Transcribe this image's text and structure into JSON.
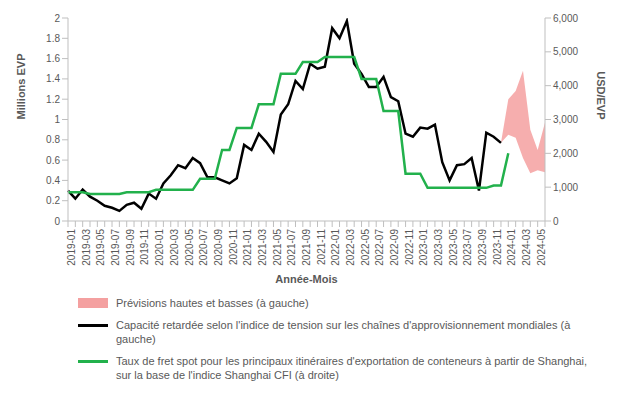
{
  "chart_data": {
    "type": "line",
    "x_label": "Année-Mois",
    "y_label": "Millions EVP",
    "y2_label": "USD/EVP",
    "categories": [
      "2019-01",
      null,
      "2019-03",
      null,
      "2019-05",
      null,
      "2019-07",
      null,
      "2019-09",
      null,
      "2019-11",
      null,
      "2020-01",
      null,
      "2020-03",
      null,
      "2020-05",
      null,
      "2020-07",
      null,
      "2020-09",
      null,
      "2020-11",
      null,
      "2021-01",
      null,
      "2021-03",
      null,
      "2021-05",
      null,
      "2021-07",
      null,
      "2021-09",
      null,
      "2021-11",
      null,
      "2022-01",
      null,
      "2022-03",
      null,
      "2022-05",
      null,
      "2022-07",
      null,
      "2022-09",
      null,
      "2022-11",
      null,
      "2023-01",
      null,
      "2023-03",
      null,
      "2023-05",
      null,
      "2023-07",
      null,
      "2023-09",
      null,
      "2023-11",
      null,
      "2024-01",
      null,
      "2024-03",
      null,
      "2024-05",
      null
    ],
    "ylim": [
      0,
      2
    ],
    "yticks": [
      0,
      0.2,
      0.4,
      0.6,
      0.8,
      1,
      1.2,
      1.4,
      1.6,
      1.8,
      2
    ],
    "y2lim": [
      0,
      6000
    ],
    "y2ticks": [
      0,
      {
        "value": 1000,
        "label": "1,000"
      },
      {
        "value": 2000,
        "label": "2,000"
      },
      {
        "value": 3000,
        "label": "3,000"
      },
      {
        "value": 4000,
        "label": "4,000"
      },
      {
        "value": 5000,
        "label": "5,000"
      },
      {
        "value": 6000,
        "label": "6,000"
      }
    ],
    "grid": false,
    "legend": "bottom",
    "series": [
      {
        "name": "Prévisions hautes et basses (à gauche)",
        "type": "area",
        "color": "#f4a0a0",
        "low": [
          null,
          null,
          null,
          null,
          null,
          null,
          null,
          null,
          null,
          null,
          null,
          null,
          null,
          null,
          null,
          null,
          null,
          null,
          null,
          null,
          null,
          null,
          null,
          null,
          null,
          null,
          null,
          null,
          null,
          null,
          null,
          null,
          null,
          null,
          null,
          null,
          null,
          null,
          null,
          null,
          null,
          null,
          null,
          null,
          null,
          null,
          null,
          null,
          null,
          null,
          null,
          null,
          null,
          null,
          null,
          null,
          null,
          null,
          null,
          0.77,
          0.85,
          0.82,
          0.62,
          0.47,
          0.5,
          0.48
        ],
        "high": [
          null,
          null,
          null,
          null,
          null,
          null,
          null,
          null,
          null,
          null,
          null,
          null,
          null,
          null,
          null,
          null,
          null,
          null,
          null,
          null,
          null,
          null,
          null,
          null,
          null,
          null,
          null,
          null,
          null,
          null,
          null,
          null,
          null,
          null,
          null,
          null,
          null,
          null,
          null,
          null,
          null,
          null,
          null,
          null,
          null,
          null,
          null,
          null,
          null,
          null,
          null,
          null,
          null,
          null,
          null,
          null,
          null,
          null,
          null,
          0.77,
          1.2,
          1.28,
          1.48,
          0.9,
          0.7,
          0.97
        ]
      },
      {
        "name": "Capacité retardée selon l'indice de tension sur les chaînes d'approvisionnement mondiales (à gauche)",
        "type": "line",
        "color": "#000000",
        "values": [
          0.3,
          0.22,
          0.31,
          0.24,
          0.2,
          0.15,
          0.13,
          0.1,
          0.16,
          0.18,
          0.12,
          0.27,
          0.22,
          0.37,
          0.45,
          0.55,
          0.52,
          0.62,
          0.57,
          0.43,
          0.43,
          0.4,
          0.37,
          0.42,
          0.75,
          0.7,
          0.86,
          0.78,
          0.68,
          1.05,
          1.15,
          1.38,
          1.3,
          1.55,
          1.5,
          1.52,
          1.9,
          1.8,
          1.97,
          1.55,
          1.45,
          1.32,
          1.32,
          1.42,
          1.22,
          1.18,
          0.86,
          0.83,
          0.92,
          0.91,
          0.95,
          0.58,
          0.4,
          0.55,
          0.56,
          0.62,
          0.3,
          0.87,
          0.83,
          0.77,
          null,
          null,
          null,
          null,
          null,
          null
        ]
      },
      {
        "name": "Taux de fret spot pour les principaux itinéraires d'exportation de conteneurs à partir de Shanghai, sur la base de l'indice Shanghai CFI (à droite)",
        "type": "line",
        "color": "#22b14c",
        "axis": "y2",
        "values": [
          850,
          850,
          850,
          800,
          800,
          800,
          800,
          800,
          850,
          850,
          850,
          850,
          920,
          920,
          920,
          920,
          920,
          920,
          1250,
          1250,
          1250,
          2100,
          2100,
          2750,
          2750,
          2750,
          3450,
          3450,
          3450,
          4350,
          4350,
          4350,
          4700,
          4700,
          4700,
          4850,
          4850,
          4850,
          4850,
          4850,
          4200,
          4200,
          4200,
          3250,
          3250,
          3250,
          1400,
          1400,
          1400,
          980,
          980,
          980,
          980,
          980,
          980,
          980,
          980,
          980,
          1050,
          1050,
          2000,
          null,
          null,
          null,
          null,
          null
        ]
      }
    ]
  }
}
